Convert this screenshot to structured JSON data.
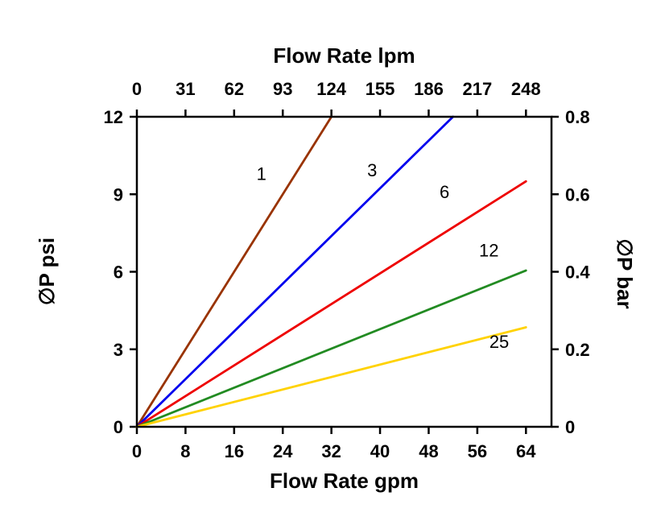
{
  "page": {
    "background": "#ffffff",
    "frame_color": "#000000"
  },
  "chart_data": {
    "type": "line",
    "title_top_axis": "Flow Rate lpm",
    "xlabel_bottom": "Flow Rate gpm",
    "ylabel_left": "∅P psi",
    "ylabel_right": "∅P bar",
    "xlim": [
      0,
      68.2
    ],
    "ylim": [
      0,
      12
    ],
    "grid": false,
    "x_bottom_ticks": [
      0,
      8,
      16,
      24,
      32,
      40,
      48,
      56,
      64
    ],
    "x_bottom_tick_labels": [
      "0",
      "8",
      "16",
      "24",
      "32",
      "40",
      "48",
      "56",
      "64"
    ],
    "x_top_tick_labels": [
      "0",
      "31",
      "62",
      "93",
      "124",
      "155",
      "186",
      "217",
      "248"
    ],
    "y_left_ticks": [
      0,
      3,
      6,
      9,
      12
    ],
    "y_left_tick_labels": [
      "0",
      "3",
      "6",
      "9",
      "12"
    ],
    "y_right_tick_labels": [
      "0",
      "0.2",
      "0.4",
      "0.6",
      "0.8"
    ],
    "series": [
      {
        "name": "1",
        "color": "#993300",
        "points": [
          [
            0,
            0
          ],
          [
            32,
            12
          ]
        ],
        "label_at": [
          20.5,
          9.55
        ]
      },
      {
        "name": "3",
        "color": "#0000EE",
        "points": [
          [
            0,
            0
          ],
          [
            52,
            12
          ]
        ],
        "label_at": [
          38.7,
          9.7
        ]
      },
      {
        "name": "6",
        "color": "#EE0000",
        "points": [
          [
            0,
            0
          ],
          [
            64,
            9.5
          ]
        ],
        "label_at": [
          50.6,
          8.85
        ]
      },
      {
        "name": "12",
        "color": "#228B22",
        "points": [
          [
            0,
            0
          ],
          [
            64,
            6.05
          ]
        ],
        "label_at": [
          57.9,
          6.6
        ]
      },
      {
        "name": "25",
        "color": "#FFD200",
        "points": [
          [
            0,
            0
          ],
          [
            64,
            3.85
          ]
        ],
        "label_at": [
          59.6,
          3.05
        ]
      }
    ]
  }
}
